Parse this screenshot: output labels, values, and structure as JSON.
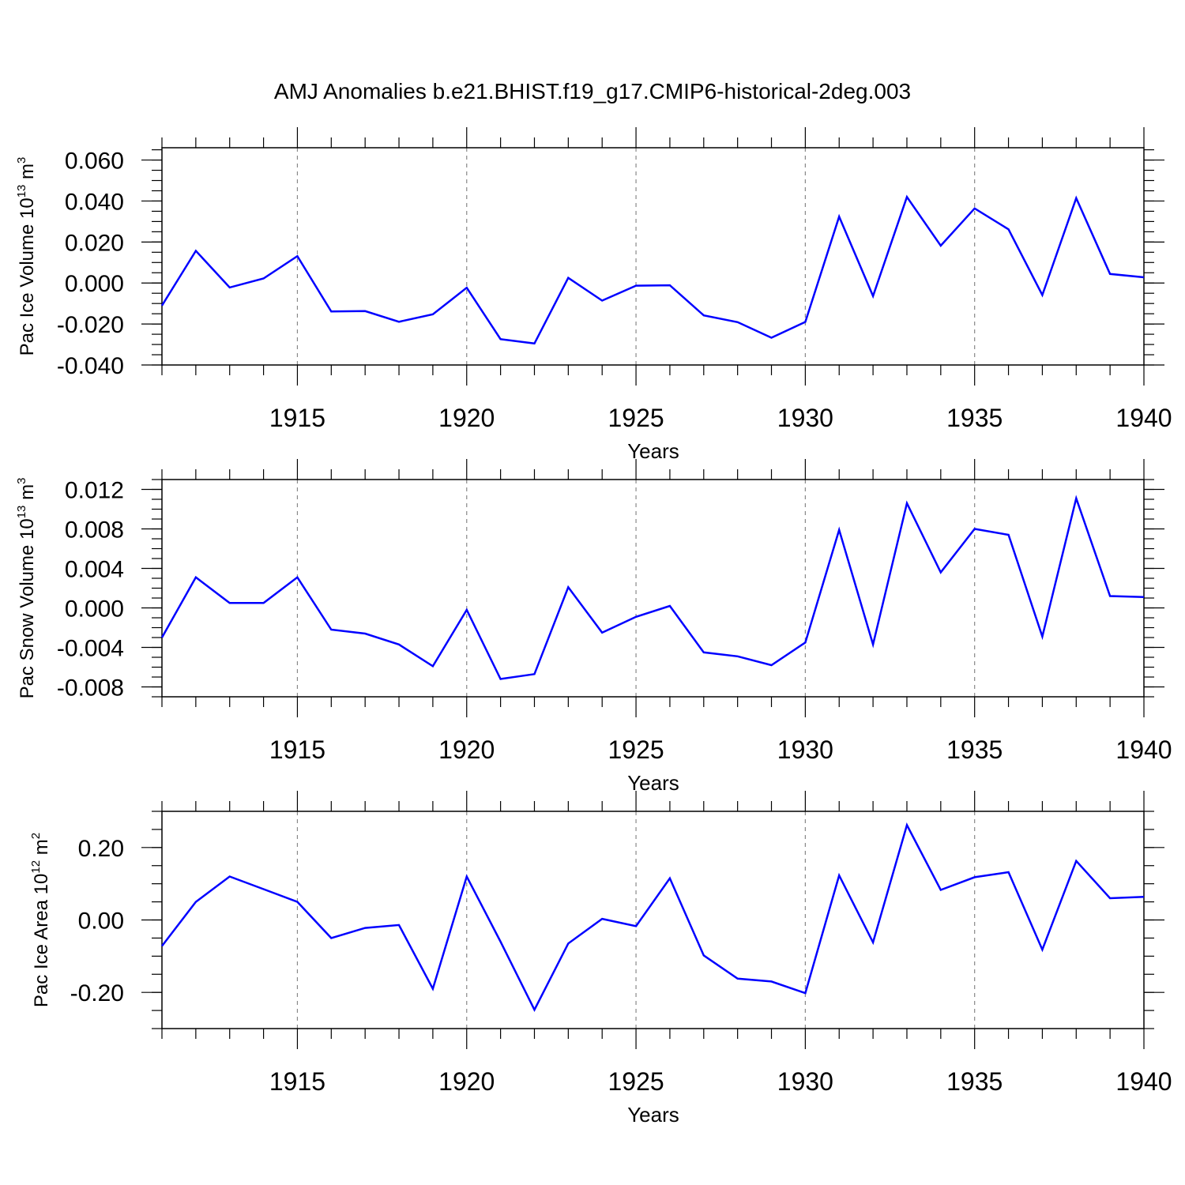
{
  "chart_data": [
    {
      "type": "line",
      "title": "AMJ Anomalies b.e21.BHIST.f19_g17.CMIP6-historical-2deg.003",
      "ylabel_text": "Pac Ice Volume 10",
      "ylabel_exp": "13",
      "ylabel_unit": " m",
      "ylabel_unit_exp": "3",
      "xlabel": "Years",
      "xlim": [
        1911,
        1940
      ],
      "ylim": [
        -0.04,
        0.066
      ],
      "yticks": [
        -0.04,
        -0.02,
        0.0,
        0.02,
        0.04,
        0.06
      ],
      "ytick_labels": [
        "-0.040",
        "-0.020",
        "0.000",
        "0.020",
        "0.040",
        "0.060"
      ],
      "yminor_step": 0.005,
      "xticks": [
        1915,
        1920,
        1925,
        1930,
        1935,
        1940
      ],
      "xtick_labels": [
        "1915",
        "1920",
        "1925",
        "1930",
        "1935",
        "1940"
      ],
      "line_color": "#0000ff",
      "series": [
        {
          "name": "Pac Ice Volume",
          "x": [
            1911,
            1912,
            1913,
            1914,
            1915,
            1916,
            1917,
            1918,
            1919,
            1920,
            1921,
            1922,
            1923,
            1924,
            1925,
            1926,
            1927,
            1928,
            1929,
            1930,
            1931,
            1932,
            1933,
            1934,
            1935,
            1936,
            1937,
            1938,
            1939,
            1940
          ],
          "values": [
            -0.011,
            0.0157,
            -0.0022,
            0.0022,
            0.0131,
            -0.0139,
            -0.0137,
            -0.0189,
            -0.0153,
            -0.0023,
            -0.0274,
            -0.0295,
            0.0025,
            -0.0086,
            -0.0013,
            -0.0011,
            -0.0158,
            -0.0191,
            -0.0267,
            -0.019,
            0.0324,
            -0.0064,
            0.042,
            0.0182,
            0.0364,
            0.0262,
            -0.0059,
            0.0414,
            0.0044,
            0.0028
          ]
        }
      ]
    },
    {
      "type": "line",
      "ylabel_text": "Pac Snow Volume 10",
      "ylabel_exp": "13",
      "ylabel_unit": " m",
      "ylabel_unit_exp": "3",
      "xlabel": "Years",
      "xlim": [
        1911,
        1940
      ],
      "ylim": [
        -0.009,
        0.013
      ],
      "yticks": [
        -0.008,
        -0.004,
        0.0,
        0.004,
        0.008,
        0.012
      ],
      "ytick_labels": [
        "-0.008",
        "-0.004",
        "0.000",
        "0.004",
        "0.008",
        "0.012"
      ],
      "yminor_step": 0.001,
      "xticks": [
        1915,
        1920,
        1925,
        1930,
        1935,
        1940
      ],
      "xtick_labels": [
        "1915",
        "1920",
        "1925",
        "1930",
        "1935",
        "1940"
      ],
      "line_color": "#0000ff",
      "series": [
        {
          "name": "Pac Snow Volume",
          "x": [
            1911,
            1912,
            1913,
            1914,
            1915,
            1916,
            1917,
            1918,
            1919,
            1920,
            1921,
            1922,
            1923,
            1924,
            1925,
            1926,
            1927,
            1928,
            1929,
            1930,
            1931,
            1932,
            1933,
            1934,
            1935,
            1936,
            1937,
            1938,
            1939,
            1940
          ],
          "values": [
            -0.003,
            0.0031,
            0.0005,
            0.0005,
            0.0031,
            -0.0022,
            -0.0026,
            -0.0037,
            -0.0059,
            -0.0002,
            -0.0072,
            -0.0067,
            0.0021,
            -0.0025,
            -0.0009,
            0.0002,
            -0.0045,
            -0.0049,
            -0.0058,
            -0.0035,
            0.0079,
            -0.0037,
            0.0106,
            0.0036,
            0.008,
            0.0074,
            -0.0029,
            0.0111,
            0.0012,
            0.0011
          ]
        }
      ]
    },
    {
      "type": "line",
      "ylabel_text": "Pac Ice Area 10",
      "ylabel_exp": "12",
      "ylabel_unit": " m",
      "ylabel_unit_exp": "2",
      "xlabel": "Years",
      "xlim": [
        1911,
        1940
      ],
      "ylim": [
        -0.3,
        0.3
      ],
      "yticks": [
        -0.2,
        0.0,
        0.2
      ],
      "ytick_labels": [
        "-0.20",
        "0.00",
        "0.20"
      ],
      "yminor_step": 0.05,
      "xticks": [
        1915,
        1920,
        1925,
        1930,
        1935,
        1940
      ],
      "xtick_labels": [
        "1915",
        "1920",
        "1925",
        "1930",
        "1935",
        "1940"
      ],
      "line_color": "#0000ff",
      "series": [
        {
          "name": "Pac Ice Area",
          "x": [
            1911,
            1912,
            1913,
            1914,
            1915,
            1916,
            1917,
            1918,
            1919,
            1920,
            1921,
            1922,
            1923,
            1924,
            1925,
            1926,
            1927,
            1928,
            1929,
            1930,
            1931,
            1932,
            1933,
            1934,
            1935,
            1936,
            1937,
            1938,
            1939,
            1940
          ],
          "values": [
            -0.072,
            0.05,
            0.12,
            0.085,
            0.05,
            -0.05,
            -0.022,
            -0.014,
            -0.19,
            0.12,
            -0.06,
            -0.248,
            -0.065,
            0.003,
            -0.017,
            0.115,
            -0.098,
            -0.162,
            -0.17,
            -0.202,
            0.123,
            -0.062,
            0.262,
            0.083,
            0.118,
            0.132,
            -0.082,
            0.163,
            0.06,
            0.064
          ]
        }
      ]
    }
  ]
}
